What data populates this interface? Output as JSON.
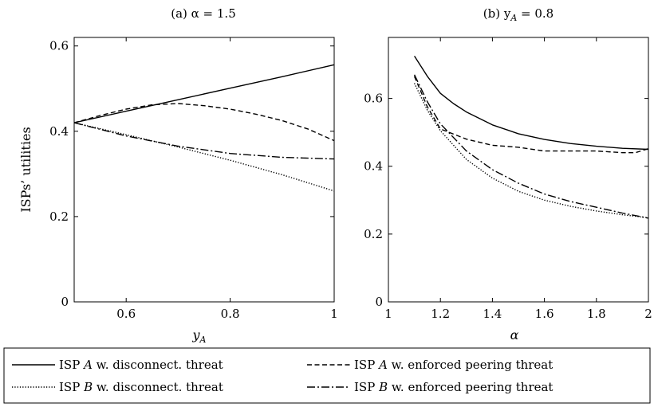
{
  "legend": [
    {
      "prefix": "ISP ",
      "var": "A",
      "suffix": " w. disconnect. threat",
      "style": "solid"
    },
    {
      "prefix": "ISP ",
      "var": "A",
      "suffix": " w. enforced peering threat",
      "style": "dashed"
    },
    {
      "prefix": "ISP ",
      "var": "B",
      "suffix": " w. disconnect. threat",
      "style": "dotted"
    },
    {
      "prefix": "ISP ",
      "var": "B",
      "suffix": " w. enforced peering threat",
      "style": "dashdot"
    }
  ],
  "chart_data": [
    {
      "type": "line",
      "title": "(a) α = 1.5",
      "xlabel": "y",
      "xlabel_sub": "A",
      "ylabel": "ISPs’ utilities",
      "xlim": [
        0.5,
        1.0
      ],
      "ylim": [
        0,
        0.62
      ],
      "xticks": [
        0.6,
        0.8,
        1
      ],
      "xtick_labels": [
        "0.6",
        "0.8",
        "1"
      ],
      "yticks": [
        0,
        0.2,
        0.4,
        0.6
      ],
      "ytick_labels": [
        "0",
        "0.2",
        "0.4",
        "0.6"
      ],
      "grid": false,
      "series": [
        {
          "name": "ISP A w. disconnect. threat",
          "style": "solid",
          "x": [
            0.5,
            0.6,
            0.7,
            0.8,
            0.9,
            1.0
          ],
          "y": [
            0.42,
            0.447,
            0.474,
            0.501,
            0.528,
            0.556
          ]
        },
        {
          "name": "ISP A w. enforced peering threat",
          "style": "dashed",
          "x": [
            0.5,
            0.55,
            0.6,
            0.65,
            0.7,
            0.75,
            0.8,
            0.85,
            0.9,
            0.95,
            1.0
          ],
          "y": [
            0.42,
            0.437,
            0.452,
            0.462,
            0.465,
            0.46,
            0.452,
            0.44,
            0.425,
            0.405,
            0.378
          ]
        },
        {
          "name": "ISP B w. disconnect. threat",
          "style": "dotted",
          "x": [
            0.5,
            0.6,
            0.7,
            0.8,
            0.9,
            1.0
          ],
          "y": [
            0.42,
            0.392,
            0.363,
            0.332,
            0.298,
            0.26
          ]
        },
        {
          "name": "ISP B w. enforced peering threat",
          "style": "dashdot",
          "x": [
            0.5,
            0.6,
            0.7,
            0.8,
            0.9,
            1.0
          ],
          "y": [
            0.42,
            0.389,
            0.365,
            0.348,
            0.339,
            0.335
          ]
        }
      ]
    },
    {
      "type": "line",
      "title": "(b) y",
      "title_sub": "A",
      "title_suffix": " = 0.8",
      "xlabel": "α",
      "xlim": [
        1,
        2
      ],
      "ylim": [
        0,
        0.78
      ],
      "xticks": [
        1,
        1.2,
        1.4,
        1.6,
        1.8,
        2
      ],
      "xtick_labels": [
        "1",
        "1.2",
        "1.4",
        "1.6",
        "1.8",
        "2"
      ],
      "yticks": [
        0,
        0.2,
        0.4,
        0.6
      ],
      "ytick_labels": [
        "0",
        "0.2",
        "0.4",
        "0.6"
      ],
      "grid": false,
      "series": [
        {
          "name": "ISP A w. disconnect. threat",
          "style": "solid",
          "x": [
            1.1,
            1.15,
            1.2,
            1.25,
            1.3,
            1.4,
            1.5,
            1.6,
            1.7,
            1.8,
            1.9,
            2.0
          ],
          "y": [
            0.725,
            0.665,
            0.615,
            0.585,
            0.56,
            0.522,
            0.496,
            0.479,
            0.467,
            0.459,
            0.453,
            0.45
          ]
        },
        {
          "name": "ISP A w. enforced peering threat",
          "style": "dashed",
          "x": [
            1.1,
            1.15,
            1.2,
            1.3,
            1.4,
            1.5,
            1.6,
            1.7,
            1.8,
            1.9,
            1.95,
            2.0
          ],
          "y": [
            0.665,
            0.575,
            0.51,
            0.48,
            0.462,
            0.456,
            0.445,
            0.445,
            0.445,
            0.44,
            0.44,
            0.452
          ]
        },
        {
          "name": "ISP B w. disconnect. threat",
          "style": "dotted",
          "x": [
            1.1,
            1.15,
            1.2,
            1.3,
            1.4,
            1.5,
            1.6,
            1.7,
            1.8,
            1.9,
            2.0
          ],
          "y": [
            0.645,
            0.565,
            0.505,
            0.42,
            0.365,
            0.326,
            0.3,
            0.282,
            0.268,
            0.257,
            0.248
          ]
        },
        {
          "name": "ISP B w. enforced peering threat",
          "style": "dashdot",
          "x": [
            1.1,
            1.15,
            1.2,
            1.3,
            1.4,
            1.5,
            1.6,
            1.7,
            1.8,
            1.9,
            2.0
          ],
          "y": [
            0.67,
            0.59,
            0.525,
            0.445,
            0.39,
            0.35,
            0.318,
            0.296,
            0.279,
            0.262,
            0.247
          ]
        }
      ]
    }
  ]
}
